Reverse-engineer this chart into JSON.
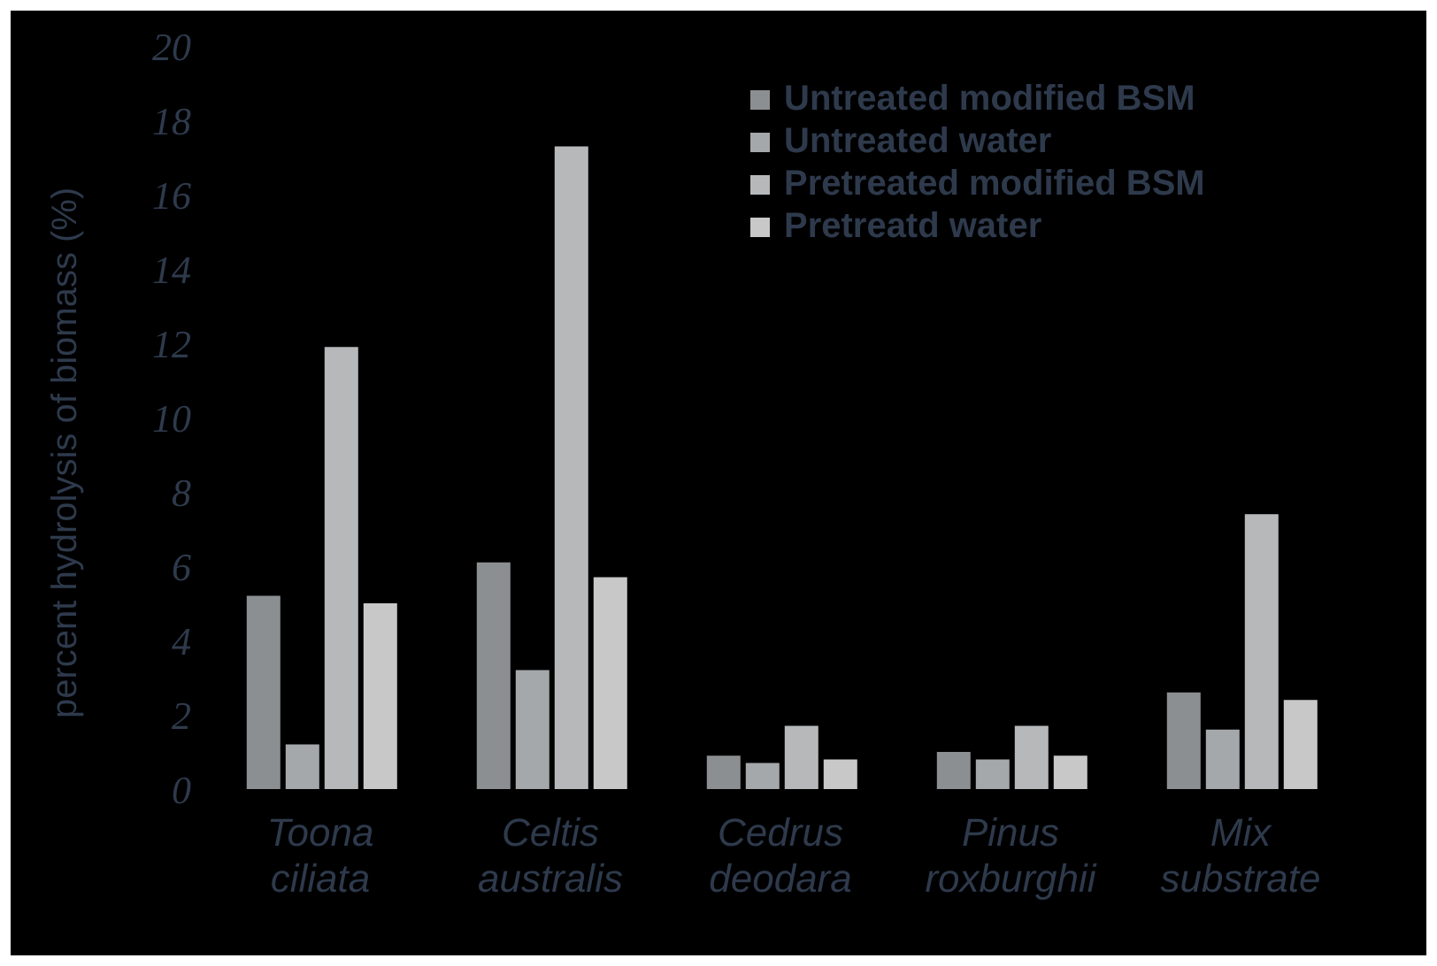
{
  "chart_data": {
    "type": "bar",
    "ylabel": "percent hydrolysis of biomass (%)",
    "categories": [
      "Toona ciliata",
      "Celtis australis",
      "Cedrus deodara",
      "Pinus roxburghii",
      "Mix substrate"
    ],
    "series": [
      {
        "name": "Untreated modified BSM",
        "color": "#8c8f91",
        "values": [
          5.2,
          6.1,
          0.9,
          1.0,
          2.6
        ]
      },
      {
        "name": "Untreated water",
        "color": "#a5a8aa",
        "values": [
          1.2,
          3.2,
          0.7,
          0.8,
          1.6
        ]
      },
      {
        "name": "Pretreated modified BSM",
        "color": "#b6b8ba",
        "values": [
          11.9,
          17.3,
          1.7,
          1.7,
          7.4
        ]
      },
      {
        "name": "Pretreatd water",
        "color": "#c8c8c8",
        "values": [
          5.0,
          5.7,
          0.8,
          0.9,
          2.4
        ]
      }
    ],
    "ylim": [
      0,
      20
    ],
    "yticks": [
      0,
      2,
      4,
      6,
      8,
      10,
      12,
      14,
      16,
      18,
      20
    ],
    "grid": false,
    "legend": "top right"
  }
}
